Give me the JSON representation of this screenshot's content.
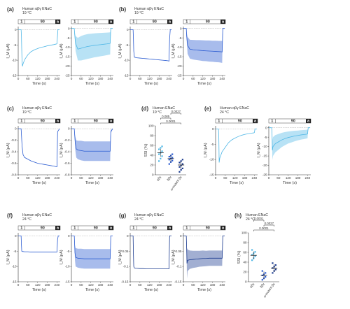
{
  "figure": {
    "panel_labels": [
      "(a)",
      "(b)",
      "(c)",
      "(d)",
      "(e)",
      "(f)",
      "(g)",
      "(h)"
    ]
  },
  "chart_data": [
    {
      "id": "a",
      "type": "line",
      "label": "(a)",
      "title": "Human αβγ ENaC",
      "temp": "19 °C",
      "color": "#4fb7e6",
      "xlabel": "Time (s)",
      "ylabel": "I_M (μA)",
      "left": {
        "xticks": [
          0,
          60,
          120,
          180,
          240
        ],
        "yticks": [
          0,
          -5,
          -10,
          -15
        ],
        "ylim": [
          -15,
          1
        ],
        "x": [
          0,
          8,
          14,
          18,
          20,
          21,
          23,
          26,
          30,
          40,
          60,
          80,
          100,
          120,
          140,
          160,
          180,
          200,
          220,
          236,
          240,
          244,
          246,
          250,
          256
        ],
        "y": [
          0,
          0,
          0,
          0,
          -2,
          -4.5,
          -9,
          -12,
          -11.2,
          -9.8,
          -8.2,
          -7.2,
          -6.6,
          -6.2,
          -5.8,
          -5.6,
          -5.3,
          -5.1,
          -4.9,
          -4.7,
          -4.6,
          -1.5,
          0,
          0,
          0
        ]
      },
      "right": {
        "xticks": [
          0,
          60,
          120,
          180,
          240
        ],
        "yticks": [
          0,
          -5,
          -10,
          -15,
          -20,
          -25
        ],
        "ylim": [
          -25,
          1
        ],
        "x": [
          0,
          8,
          14,
          18,
          20,
          26,
          40,
          60,
          80,
          100,
          120,
          140,
          160,
          180,
          200,
          220,
          236,
          240,
          244,
          256
        ],
        "mean": [
          0,
          0,
          0,
          0,
          -3,
          -8,
          -11,
          -10.5,
          -10,
          -9.6,
          -9.3,
          -9.0,
          -8.8,
          -8.6,
          -8.4,
          -8.2,
          -8.0,
          -7.9,
          0,
          0
        ],
        "sd": [
          0,
          0,
          0,
          0,
          1.5,
          4,
          6,
          6.5,
          6.6,
          6.6,
          6.5,
          6.4,
          6.3,
          6.2,
          6.1,
          6.0,
          5.9,
          5.9,
          0,
          0
        ]
      },
      "segments": [
        "1",
        "90",
        "a"
      ]
    },
    {
      "id": "b",
      "type": "line",
      "label": "(b)",
      "title": "Human αβγ ENaC",
      "temp": "19 °C",
      "color": "#2a5bd1",
      "xlabel": "Time (s)",
      "ylabel": "I_M (μA)",
      "left": {
        "xticks": [
          0,
          60,
          120,
          180,
          240
        ],
        "yticks": [
          0,
          -5,
          -10,
          -15
        ],
        "ylim": [
          -15,
          1
        ],
        "x": [
          0,
          8,
          14,
          18,
          20,
          22,
          26,
          40,
          60,
          80,
          100,
          120,
          140,
          160,
          180,
          200,
          220,
          236,
          240,
          244,
          248,
          256
        ],
        "y": [
          0,
          0,
          0,
          0,
          -3,
          -7,
          -9,
          -9.2,
          -9.3,
          -9.4,
          -9.5,
          -9.6,
          -9.7,
          -9.8,
          -9.9,
          -10,
          -10.1,
          -10.2,
          -10.3,
          -3,
          0,
          0
        ]
      },
      "right": {
        "xticks": [
          0,
          60,
          120,
          180,
          240
        ],
        "yticks": [
          0,
          -5,
          -10,
          -15,
          -20,
          -25
        ],
        "ylim": [
          -25,
          1
        ],
        "x": [
          0,
          8,
          14,
          18,
          20,
          26,
          40,
          60,
          80,
          100,
          120,
          140,
          160,
          180,
          200,
          220,
          236,
          240,
          244,
          256
        ],
        "mean": [
          0,
          0,
          0,
          0,
          -4,
          -9,
          -11,
          -11.3,
          -11.5,
          -11.6,
          -11.8,
          -11.9,
          -12,
          -12.1,
          -12.2,
          -12.3,
          -12.4,
          -12.5,
          0,
          0
        ],
        "sd": [
          0,
          0,
          0,
          0,
          2,
          4.5,
          5,
          5.2,
          5.3,
          5.4,
          5.5,
          5.5,
          5.6,
          5.6,
          5.7,
          5.7,
          5.8,
          5.8,
          0,
          0
        ]
      },
      "segments": [
        "1",
        "90",
        "a"
      ]
    },
    {
      "id": "c",
      "type": "line",
      "label": "(c)",
      "title": "Human αβγ ENaC",
      "temp": "19 °C",
      "color": "#2a5bd1",
      "xlabel": "Time (s)",
      "ylabel": "I_M (μA)",
      "left": {
        "xticks": [
          0,
          60,
          120,
          180,
          240
        ],
        "yticks": [
          0,
          -0.2,
          -0.4,
          -0.6,
          -0.8
        ],
        "ylim": [
          -0.8,
          0.05
        ],
        "x": [
          0,
          8,
          14,
          18,
          20,
          24,
          30,
          40,
          60,
          80,
          100,
          120,
          140,
          160,
          180,
          200,
          220,
          236,
          240,
          244,
          256
        ],
        "y": [
          0,
          0,
          0,
          0,
          -0.1,
          -0.3,
          -0.45,
          -0.5,
          -0.53,
          -0.56,
          -0.58,
          -0.6,
          -0.61,
          -0.62,
          -0.63,
          -0.64,
          -0.65,
          -0.66,
          -0.66,
          -0.05,
          0
        ]
      },
      "right": {
        "xticks": [
          0,
          60,
          120,
          180,
          240
        ],
        "yticks": [
          0,
          -0.2,
          -0.4,
          -0.6,
          -0.8
        ],
        "ylim": [
          -0.8,
          0.05
        ],
        "x": [
          0,
          8,
          14,
          18,
          20,
          24,
          30,
          40,
          60,
          80,
          100,
          120,
          140,
          160,
          180,
          200,
          220,
          236,
          240,
          244,
          256
        ],
        "mean": [
          0,
          0,
          0,
          0,
          -0.1,
          -0.25,
          -0.35,
          -0.37,
          -0.38,
          -0.39,
          -0.39,
          -0.39,
          -0.39,
          -0.39,
          -0.39,
          -0.39,
          -0.39,
          -0.39,
          -0.39,
          -0.05,
          0
        ],
        "sd": [
          0,
          0,
          0,
          0,
          0.05,
          0.12,
          0.15,
          0.16,
          0.17,
          0.17,
          0.17,
          0.17,
          0.17,
          0.17,
          0.17,
          0.17,
          0.17,
          0.17,
          0.17,
          0.03,
          0
        ]
      },
      "segments": [
        "1",
        "90",
        "a"
      ]
    },
    {
      "id": "d",
      "type": "scatter",
      "label": "(d)",
      "title": "Human ENaC",
      "temp": "19 °C",
      "ylabel": "SSI (%)",
      "yticks": [
        0,
        20,
        40,
        60,
        80,
        100
      ],
      "ylim": [
        0,
        100
      ],
      "categories": [
        "αβγ",
        "δβγ",
        "α-mutant βγ"
      ],
      "colors": [
        "#4fb7e6",
        "#2a5bd1",
        "#1a3a8f"
      ],
      "means": [
        45,
        33,
        20
      ],
      "points": [
        [
          28,
          33,
          38,
          42,
          45,
          48,
          52,
          55,
          58
        ],
        [
          22,
          26,
          29,
          31,
          33,
          35,
          37,
          39,
          42
        ],
        [
          6,
          10,
          13,
          16,
          19,
          22,
          25,
          28,
          31
        ]
      ],
      "comparisons": [
        {
          "text": "0.0001",
          "from": 0,
          "to": 2
        },
        {
          "text": "0.085",
          "from": 0,
          "to": 1
        },
        {
          "text": "0.0027",
          "from": 1,
          "to": 2
        }
      ]
    },
    {
      "id": "e",
      "type": "line",
      "label": "(e)",
      "title": "Human αβγ ENaC",
      "temp": "24 °C",
      "color": "#4fb7e6",
      "xlabel": "Time (s)",
      "ylabel": "I_M (μA)",
      "left": {
        "xticks": [
          0,
          60,
          120,
          180,
          240
        ],
        "yticks": [
          0,
          -5,
          -10,
          -15
        ],
        "ylim": [
          -15,
          1
        ],
        "x": [
          0,
          8,
          14,
          18,
          20,
          22,
          26,
          40,
          60,
          80,
          100,
          120,
          140,
          160,
          180,
          200,
          220,
          236,
          240,
          244,
          256
        ],
        "y": [
          0,
          0,
          0,
          0,
          -3,
          -11,
          -9.5,
          -7.5,
          -6,
          -4.5,
          -3.6,
          -3,
          -2.5,
          -2.1,
          -1.8,
          -1.6,
          -1.4,
          -1.3,
          -1.2,
          0,
          0
        ]
      },
      "right": {
        "xticks": [
          0,
          60,
          120,
          180,
          240
        ],
        "yticks": [
          0,
          -5,
          -10,
          -15,
          -20,
          -25
        ],
        "ylim": [
          -25,
          1
        ],
        "x": [
          0,
          8,
          14,
          18,
          20,
          22,
          26,
          40,
          60,
          80,
          100,
          120,
          140,
          160,
          180,
          200,
          220,
          236,
          240,
          244,
          256
        ],
        "mean": [
          0,
          0,
          0,
          0,
          -3,
          -12,
          -10,
          -8.5,
          -7.5,
          -6.5,
          -5.8,
          -5.2,
          -4.8,
          -4.4,
          -4.1,
          -3.8,
          -3.6,
          -3.4,
          -3.3,
          0,
          0
        ],
        "sd": [
          0,
          0,
          0,
          0,
          1.5,
          5,
          5,
          4.6,
          4.2,
          3.8,
          3.5,
          3.2,
          3,
          2.8,
          2.6,
          2.5,
          2.4,
          2.3,
          2.3,
          0,
          0
        ]
      },
      "segments": [
        "1",
        "90",
        "a"
      ]
    },
    {
      "id": "f",
      "type": "line",
      "label": "(f)",
      "title": "Human αβγ ENaC",
      "temp": "24 °C",
      "color": "#2a5bd1",
      "xlabel": "Time (s)",
      "ylabel": "I_M (μA)",
      "left": {
        "xticks": [
          0,
          60,
          120,
          180,
          240
        ],
        "yticks": [
          0,
          -5,
          -10,
          -15
        ],
        "ylim": [
          -15,
          1
        ],
        "x": [
          0,
          8,
          14,
          18,
          20,
          22,
          26,
          40,
          60,
          80,
          100,
          120,
          140,
          160,
          180,
          200,
          220,
          236,
          240,
          244,
          248,
          256
        ],
        "y": [
          0,
          0,
          0,
          0,
          -3,
          -5,
          -5.1,
          -5.2,
          -5.2,
          -5.3,
          -5.3,
          -5.3,
          -5.3,
          -5.3,
          -5.3,
          -5.3,
          -5.3,
          -5.3,
          -5.3,
          -1,
          0,
          0
        ]
      },
      "right": {
        "xticks": [
          0,
          60,
          120,
          180,
          240
        ],
        "yticks": [
          0,
          -5,
          -10,
          -15
        ],
        "ylim": [
          -15,
          1
        ],
        "x": [
          0,
          8,
          14,
          18,
          20,
          22,
          26,
          40,
          60,
          80,
          100,
          120,
          140,
          160,
          180,
          200,
          220,
          236,
          240,
          244,
          256
        ],
        "mean": [
          0,
          0,
          0,
          0,
          -3,
          -5.5,
          -7,
          -7.3,
          -7.4,
          -7.5,
          -7.5,
          -7.5,
          -7.5,
          -7.5,
          -7.5,
          -7.5,
          -7.5,
          -7.5,
          -7.5,
          0,
          0
        ],
        "sd": [
          0,
          0,
          0,
          0,
          1.5,
          2.5,
          3,
          3.1,
          3.2,
          3.2,
          3.2,
          3.2,
          3.2,
          3.2,
          3.2,
          3.2,
          3.2,
          3.2,
          3.2,
          0,
          0
        ]
      },
      "segments": [
        "1",
        "90",
        "a"
      ]
    },
    {
      "id": "g",
      "type": "line",
      "label": "(g)",
      "title": "Human αβγ ENaC",
      "temp": "24 °C",
      "color": "#1a3a8f",
      "xlabel": "Time (s)",
      "ylabel": "I_M (μA)",
      "left": {
        "xticks": [
          0,
          60,
          120,
          180,
          240
        ],
        "yticks": [
          0,
          -0.05,
          -0.1,
          -0.15
        ],
        "ylim": [
          -0.15,
          0.01
        ],
        "x": [
          0,
          8,
          14,
          18,
          20,
          22,
          26,
          40,
          60,
          80,
          100,
          120,
          140,
          160,
          180,
          200,
          220,
          236,
          240,
          244,
          256
        ],
        "y": [
          0,
          0,
          0,
          0,
          -0.06,
          -0.1,
          -0.105,
          -0.106,
          -0.107,
          -0.107,
          -0.108,
          -0.108,
          -0.108,
          -0.108,
          -0.108,
          -0.108,
          -0.108,
          -0.108,
          -0.108,
          0,
          0
        ]
      },
      "right": {
        "xticks": [
          0,
          60,
          120,
          180,
          240
        ],
        "yticks": [
          0,
          -0.05,
          -0.1,
          -0.15
        ],
        "ylim": [
          -0.15,
          0.01
        ],
        "x": [
          0,
          8,
          14,
          18,
          20,
          22,
          26,
          40,
          60,
          80,
          100,
          120,
          140,
          160,
          180,
          200,
          220,
          236,
          240,
          244,
          256
        ],
        "mean": [
          0,
          0,
          0,
          0,
          -0.04,
          -0.09,
          -0.08,
          -0.078,
          -0.077,
          -0.076,
          -0.075,
          -0.074,
          -0.074,
          -0.073,
          -0.073,
          -0.073,
          -0.073,
          -0.073,
          -0.073,
          0,
          0
        ],
        "sd": [
          0,
          0,
          0,
          0,
          0.02,
          0.05,
          0.035,
          0.03,
          0.028,
          0.027,
          0.026,
          0.026,
          0.025,
          0.025,
          0.025,
          0.025,
          0.025,
          0.025,
          0.025,
          0,
          0
        ]
      },
      "segments": [
        "1",
        "90",
        "a"
      ]
    },
    {
      "id": "h",
      "type": "scatter",
      "label": "(h)",
      "title": "Human ENaC",
      "temp": "24 °C",
      "ylabel": "SSI (%)",
      "yticks": [
        0,
        20,
        40,
        60,
        80,
        100
      ],
      "ylim": [
        0,
        100
      ],
      "categories": [
        "αβγ",
        "δβγ",
        "α-mutant βγ"
      ],
      "colors": [
        "#4fb7e6",
        "#2a5bd1",
        "#1a3a8f"
      ],
      "means": [
        54,
        13,
        28
      ],
      "points": [
        [
          44,
          48,
          52,
          55,
          58,
          61,
          65
        ],
        [
          4,
          7,
          10,
          13,
          15,
          18,
          22
        ],
        [
          18,
          22,
          25,
          28,
          31,
          34,
          38
        ]
      ],
      "comparisons": [
        {
          "text": "0.0001",
          "from": 0,
          "to": 2
        },
        {
          "text": "0.0027",
          "from": 1,
          "to": 2
        },
        {
          "text": "0.0001",
          "from": 0,
          "to": 1
        }
      ]
    }
  ]
}
